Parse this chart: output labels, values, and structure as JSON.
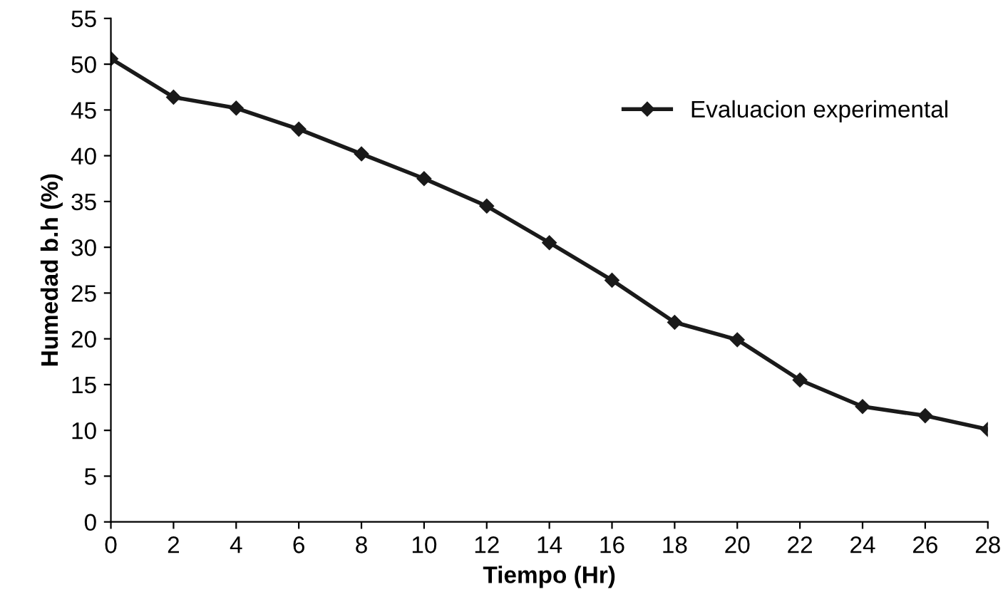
{
  "chart_data": {
    "type": "line",
    "xlabel": "Tiempo (Hr)",
    "ylabel": "Humedad b.h (%)",
    "x": [
      0,
      2,
      4,
      6,
      8,
      10,
      12,
      14,
      16,
      18,
      20,
      22,
      24,
      26,
      28
    ],
    "series": [
      {
        "name": "Evaluacion experimental",
        "color": "#1a1a1a",
        "values": [
          50.6,
          46.4,
          45.2,
          42.9,
          40.2,
          37.5,
          34.5,
          30.5,
          26.4,
          21.8,
          19.9,
          15.5,
          12.6,
          11.6,
          10.1
        ]
      }
    ],
    "xlim": [
      0,
      28
    ],
    "xticks": [
      0,
      2,
      4,
      6,
      8,
      10,
      12,
      14,
      16,
      18,
      20,
      22,
      24,
      26,
      28
    ],
    "ylim": [
      0,
      55
    ],
    "yticks": [
      0,
      5,
      10,
      15,
      20,
      25,
      30,
      35,
      40,
      45,
      50,
      55
    ],
    "grid": false,
    "legend": "top right",
    "marker": "diamond",
    "line_style": "solid"
  }
}
